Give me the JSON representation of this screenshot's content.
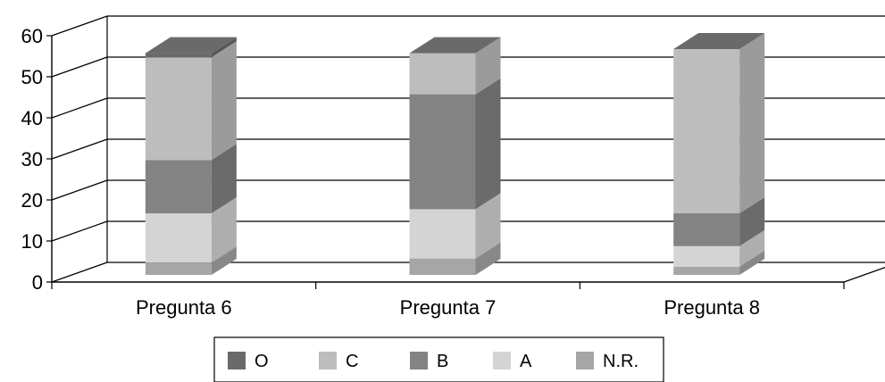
{
  "chart_data": {
    "type": "bar",
    "stacked": true,
    "three_d": true,
    "categories": [
      "Pregunta 6",
      "Pregunta 7",
      "Pregunta 8"
    ],
    "series": [
      {
        "name": "N.R.",
        "values": [
          3,
          4,
          2
        ],
        "color": "#a6a6a6"
      },
      {
        "name": "A",
        "values": [
          12,
          12,
          5
        ],
        "color": "#d4d4d4"
      },
      {
        "name": "B",
        "values": [
          13,
          28,
          8
        ],
        "color": "#838383"
      },
      {
        "name": "C",
        "values": [
          25,
          10,
          40
        ],
        "color": "#bdbdbd"
      },
      {
        "name": "O",
        "values": [
          1,
          0,
          0
        ],
        "color": "#6a6a6a"
      }
    ],
    "legend_order": [
      "O",
      "C",
      "B",
      "A",
      "N.R."
    ],
    "yticks": [
      0,
      10,
      20,
      30,
      40,
      50,
      60
    ],
    "ylim": [
      0,
      60
    ],
    "grid": true,
    "legend_position": "bottom"
  }
}
